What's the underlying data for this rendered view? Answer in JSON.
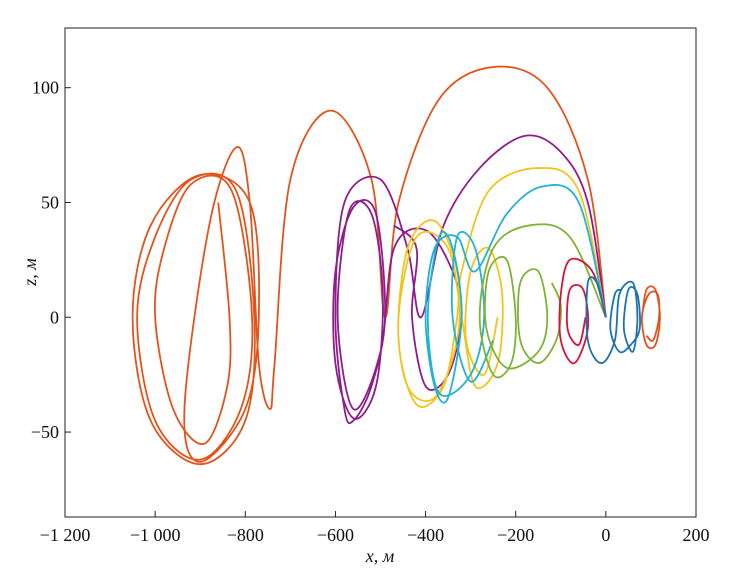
{
  "chart_data": {
    "type": "line",
    "xlabel": "x, м",
    "ylabel": "z, м",
    "xlim": [
      -1200,
      200
    ],
    "xticks": [
      {
        "value": -1200,
        "label": "−1 200"
      },
      {
        "value": -1000,
        "label": "−1 000"
      },
      {
        "value": -800,
        "label": "−800"
      },
      {
        "value": -600,
        "label": "−600"
      },
      {
        "value": -400,
        "label": "−400"
      },
      {
        "value": -200,
        "label": "−200"
      },
      0,
      200
    ],
    "ylim": [
      -87,
      126
    ],
    "yticks": [
      {
        "value": -50,
        "label": "−50"
      },
      0,
      50,
      100
    ],
    "series": [
      {
        "color": "#e2541c",
        "x": [
          0,
          -40,
          -130,
          -250,
          -370,
          -460,
          -490,
          -520,
          -610,
          -700,
          -735,
          -745,
          -770,
          -790,
          -820,
          -880,
          -935,
          -900,
          -800,
          -770,
          -790,
          -900,
          -1010,
          -1050,
          -1010,
          -900,
          -800,
          -780,
          -820,
          -920,
          -1000,
          -1040,
          -1000,
          -900,
          -810,
          -785,
          -830,
          -920,
          -980,
          -1000,
          -960,
          -890,
          -840,
          -835,
          -860
        ],
        "values": [
          0,
          60,
          100,
          109,
          95,
          50,
          0,
          60,
          90,
          60,
          -20,
          -40,
          -20,
          50,
          74,
          40,
          -40,
          -63,
          -40,
          0,
          50,
          62,
          40,
          0,
          -45,
          -64,
          -45,
          0,
          55,
          60,
          35,
          0,
          -45,
          -62,
          -40,
          0,
          55,
          58,
          30,
          0,
          -40,
          -55,
          -30,
          0,
          50
        ]
      },
      {
        "color": "#8e1d8c",
        "x": [
          0,
          -40,
          -100,
          -180,
          -280,
          -360,
          -410,
          -440,
          -500,
          -580,
          -600,
          -580,
          -560,
          -520,
          -490,
          -510,
          -560,
          -600,
          -600,
          -560,
          -510,
          -495,
          -520,
          -570,
          -595,
          -560,
          -500,
          -470,
          -400,
          -340,
          -320,
          -350,
          -400,
          -430,
          -420,
          -470
        ],
        "values": [
          0,
          50,
          72,
          79,
          65,
          40,
          0,
          30,
          60,
          50,
          0,
          -40,
          -45,
          -30,
          0,
          45,
          48,
          20,
          -20,
          -44,
          -30,
          10,
          45,
          46,
          0,
          -40,
          -15,
          30,
          38,
          20,
          0,
          -25,
          -30,
          0,
          30,
          40
        ]
      },
      {
        "color": "#f2c31c",
        "x": [
          0,
          -60,
          -150,
          -260,
          -320,
          -330,
          -360,
          -420,
          -460,
          -440,
          -380,
          -330,
          -330,
          -380,
          -440,
          -460,
          -420,
          -350,
          -320,
          -290,
          -240,
          -230,
          -260,
          -300,
          -310,
          -270,
          -240
        ],
        "values": [
          0,
          55,
          65,
          55,
          20,
          0,
          -30,
          -38,
          -10,
          30,
          42,
          20,
          -10,
          -35,
          -30,
          0,
          35,
          30,
          0,
          -30,
          -20,
          10,
          30,
          20,
          -10,
          -25,
          0
        ]
      },
      {
        "color": "#22b2d4",
        "x": [
          0,
          -60,
          -140,
          -220,
          -290,
          -330,
          -380,
          -400,
          -380,
          -350,
          -320,
          -340,
          -370,
          -395,
          -370,
          -300,
          -270,
          -290,
          -330,
          -340,
          -300,
          -250
        ],
        "values": [
          0,
          50,
          57,
          45,
          20,
          35,
          30,
          0,
          -30,
          -35,
          0,
          30,
          35,
          0,
          -33,
          -25,
          0,
          30,
          35,
          0,
          -28,
          -10
        ]
      },
      {
        "color": "#7fb234",
        "x": [
          0,
          -80,
          -170,
          -250,
          -280,
          -250,
          -210,
          -200,
          -220,
          -260,
          -265,
          -220,
          -150,
          -130,
          -150,
          -190,
          -190,
          -150,
          -110,
          -100,
          -120
        ],
        "values": [
          0,
          35,
          40,
          30,
          0,
          -25,
          -20,
          0,
          25,
          20,
          -5,
          -22,
          -15,
          0,
          20,
          15,
          -10,
          -20,
          -10,
          5,
          15
        ]
      },
      {
        "color": "#d4143a",
        "x": [
          0,
          -30,
          -80,
          -100,
          -100,
          -70,
          -40,
          -50,
          -80,
          -85,
          -60,
          -45
        ],
        "values": [
          0,
          20,
          25,
          10,
          -10,
          -20,
          -5,
          12,
          12,
          -5,
          -12,
          0
        ]
      },
      {
        "color": "#1c72b2",
        "x": [
          0,
          -20,
          -40,
          -40,
          -10,
          20,
          30,
          60,
          70,
          60,
          40,
          50,
          70,
          75,
          55,
          30,
          10,
          20,
          35
        ],
        "values": [
          0,
          15,
          15,
          -10,
          -20,
          -10,
          10,
          15,
          0,
          -15,
          -5,
          12,
          10,
          -5,
          -12,
          -15,
          -5,
          10,
          12
        ]
      },
      {
        "color": "#e2541c",
        "x": [
          80,
          90,
          110,
          120,
          110,
          90,
          80,
          95,
          115,
          118,
          105,
          90
        ],
        "values": [
          0,
          12,
          12,
          0,
          -12,
          -12,
          0,
          10,
          10,
          0,
          -10,
          -8
        ]
      }
    ]
  }
}
